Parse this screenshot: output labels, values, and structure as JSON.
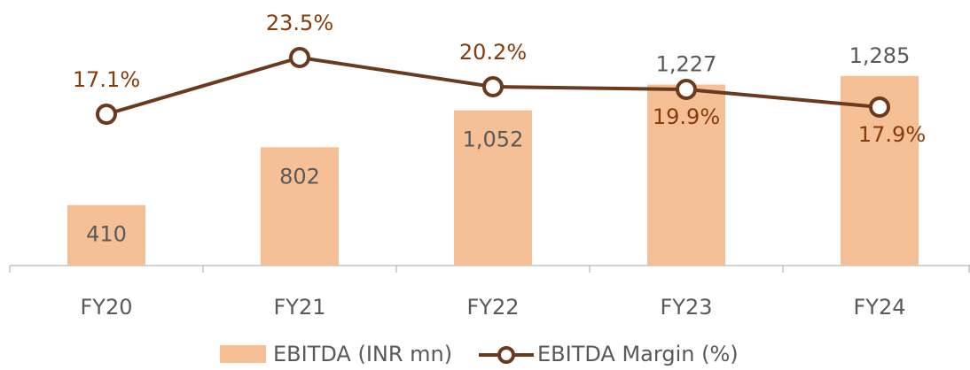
{
  "chart_data": {
    "type": "bar-line",
    "categories": [
      "FY20",
      "FY21",
      "FY22",
      "FY23",
      "FY24"
    ],
    "series": [
      {
        "name": "EBITDA (INR mn)",
        "type": "bar",
        "color": "#f5c096",
        "values": [
          410,
          802,
          1052,
          1227,
          1285
        ],
        "value_labels": [
          "410",
          "802",
          "1,052",
          "1,227",
          "1,285"
        ]
      },
      {
        "name": "EBITDA Margin (%)",
        "type": "line",
        "axis": "y2",
        "color": "#6b3a1e",
        "values": [
          17.1,
          23.5,
          20.2,
          19.9,
          17.9
        ],
        "value_labels": [
          "17.1%",
          "23.5%",
          "20.2%",
          "19.9%",
          "17.9%"
        ]
      }
    ],
    "ylim": [
      0,
      1800
    ],
    "y2lim": [
      0,
      30
    ],
    "legend": "bottom"
  }
}
